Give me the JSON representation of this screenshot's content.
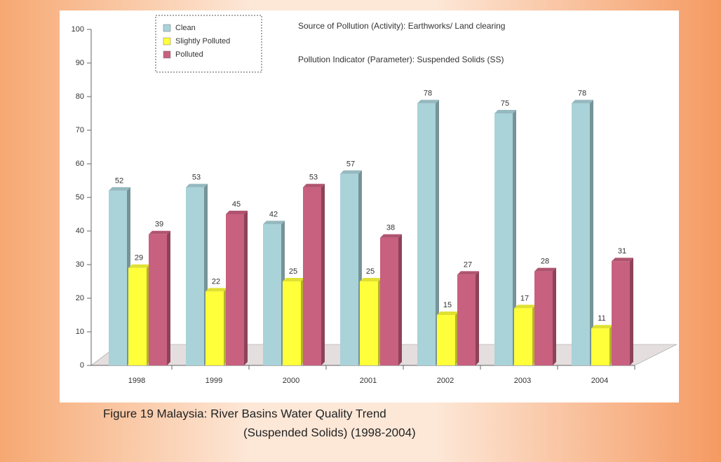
{
  "chart_data": {
    "type": "bar3d",
    "title": "Source of Pollution (Activity): Earthworks/ Land clearing",
    "subtitle": "Pollution Indicator (Parameter): Suspended Solids (SS)",
    "caption": [
      "Figure 19 Malaysia: River Basins Water Quality Trend",
      "(Suspended Solids) (1998-2004)"
    ],
    "categories": [
      "1998",
      "1999",
      "2000",
      "2001",
      "2002",
      "2003",
      "2004"
    ],
    "series": [
      {
        "name": "Clean",
        "color": "#a9d2d9",
        "values": [
          52,
          53,
          42,
          57,
          78,
          75,
          78
        ]
      },
      {
        "name": "Slightly Polluted",
        "color": "#ffff3a",
        "values": [
          29,
          22,
          25,
          25,
          15,
          17,
          11
        ]
      },
      {
        "name": "Polluted",
        "color": "#c8607f",
        "values": [
          39,
          45,
          53,
          38,
          27,
          28,
          31
        ]
      }
    ],
    "ylim": [
      0,
      100
    ],
    "yticks": [
      0,
      10,
      20,
      30,
      40,
      50,
      60,
      70,
      80,
      90,
      100
    ]
  }
}
